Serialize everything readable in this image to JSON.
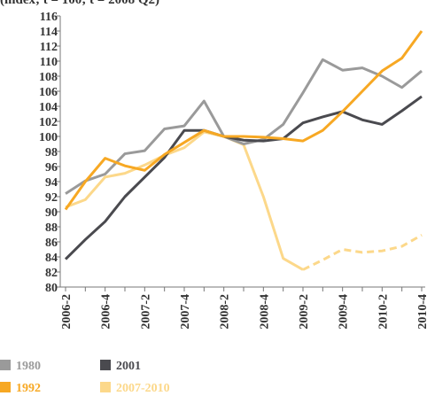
{
  "chart_data": {
    "type": "line",
    "title": "(index; t = 100; t = 2008 Q2)",
    "title_color": "#f5a623",
    "categories": [
      "2006-2",
      null,
      "2006-4",
      null,
      "2007-2",
      null,
      "2007-4",
      null,
      "2008-2",
      null,
      "2008-4",
      null,
      "2009-2",
      null,
      "2009-4",
      null,
      "2010-2",
      null,
      "2010-4"
    ],
    "series": [
      {
        "name": "1980",
        "color": "#9a9a9a",
        "values": [
          92.4,
          94.1,
          95.0,
          97.7,
          98.1,
          101.0,
          101.4,
          104.7,
          100.0,
          99.0,
          99.6,
          101.6,
          105.8,
          110.2,
          108.8,
          109.1,
          108.0,
          106.5,
          108.7
        ]
      },
      {
        "name": "2001",
        "color": "#4a4a4f",
        "values": [
          83.7,
          86.3,
          88.7,
          92.0,
          94.6,
          97.2,
          100.8,
          100.8,
          100.0,
          99.5,
          99.4,
          99.7,
          101.8,
          102.6,
          103.3,
          102.2,
          101.6,
          103.4,
          105.3
        ]
      },
      {
        "name": "1992",
        "color": "#f7a823",
        "values": [
          90.3,
          94.0,
          97.1,
          96.1,
          95.5,
          97.6,
          99.2,
          100.8,
          100.0,
          100.0,
          99.9,
          99.7,
          99.4,
          100.8,
          103.3,
          106.0,
          108.7,
          110.4,
          114.0
        ]
      },
      {
        "name": "2007-2010",
        "color": "#fcd88a",
        "dashed_from": 12,
        "values": [
          90.6,
          91.6,
          94.6,
          95.1,
          96.2,
          97.5,
          98.5,
          100.6,
          100.0,
          98.9,
          92.0,
          83.8,
          82.3,
          83.6,
          85.0,
          84.6,
          84.8,
          85.4,
          86.9
        ]
      }
    ],
    "ylim": [
      80,
      116
    ],
    "yticks": [
      80,
      82,
      84,
      86,
      88,
      90,
      92,
      94,
      96,
      98,
      100,
      102,
      104,
      106,
      108,
      110,
      112,
      114,
      116
    ],
    "grid": false,
    "legend": "bottom"
  }
}
